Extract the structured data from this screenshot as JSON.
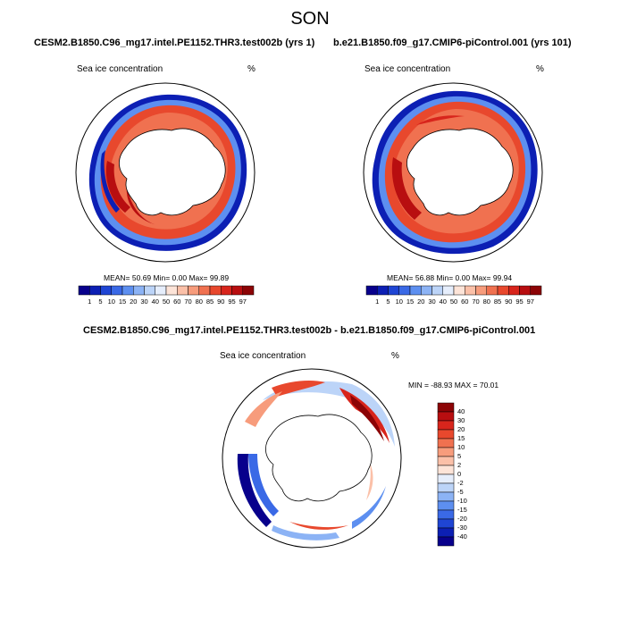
{
  "season": "SON",
  "panels": [
    {
      "title": "CESM2.B1850.C96_mg17.intel.PE1152.THR3.test002b (yrs 1)",
      "variable": "Sea ice concentration",
      "units": "%",
      "stats": "MEAN=  50.69  Min=   0.00  Max=  99.89"
    },
    {
      "title": "b.e21.B1850.f09_g17.CMIP6-piControl.001 (yrs 101)",
      "variable": "Sea ice concentration",
      "units": "%",
      "stats": "MEAN=  56.88  Min=   0.00  Max=  99.94"
    }
  ],
  "colorbar": {
    "labels": [
      "1",
      "5",
      "10",
      "15",
      "20",
      "30",
      "40",
      "50",
      "60",
      "70",
      "80",
      "85",
      "90",
      "95",
      "97"
    ],
    "colors": [
      "#08008c",
      "#0c1fb4",
      "#1f45d4",
      "#3a69e6",
      "#5d8ff0",
      "#8cb3f5",
      "#bcd4f8",
      "#e6eefc",
      "#fde4d8",
      "#fbc0a8",
      "#f79c7c",
      "#f07150",
      "#e8482d",
      "#d8251c",
      "#b80e10",
      "#8c0406"
    ]
  },
  "difference": {
    "title": "CESM2.B1850.C96_mg17.intel.PE1152.THR3.test002b - b.e21.B1850.f09_g17.CMIP6-piControl.001",
    "variable": "Sea ice concentration",
    "units": "%",
    "stats": "MIN = -88.93 MAX =  70.01",
    "colorbar": {
      "labels": [
        "40",
        "30",
        "20",
        "15",
        "10",
        "5",
        "2",
        "0",
        "-2",
        "-5",
        "-10",
        "-15",
        "-20",
        "-30",
        "-40"
      ],
      "colors": [
        "#8c0406",
        "#b80e10",
        "#d8251c",
        "#e8482d",
        "#f07150",
        "#f79c7c",
        "#fbc0a8",
        "#fde4d8",
        "#e6eefc",
        "#bcd4f8",
        "#8cb3f5",
        "#5d8ff0",
        "#3a69e6",
        "#1f45d4",
        "#0c1fb4",
        "#08008c"
      ]
    }
  }
}
